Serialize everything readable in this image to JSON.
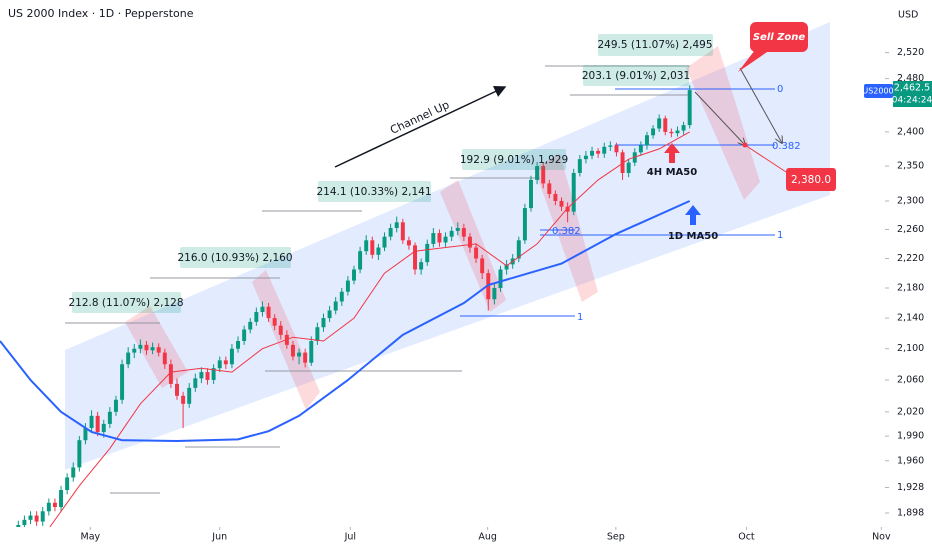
{
  "chart_data": {
    "type": "candlestick",
    "title": "US 2000 Index · 1D · Pepperstone",
    "y_axis_label": "USD",
    "log_scale": true,
    "grid": false,
    "ylim": [
      1884,
      2603
    ],
    "yticks": [
      {
        "value": 2520,
        "label": "2,520"
      },
      {
        "value": 2480,
        "label": "2,480"
      },
      {
        "value": 2400,
        "label": "2,400"
      },
      {
        "value": 2350,
        "label": "2,350"
      },
      {
        "value": 2300,
        "label": "2,300"
      },
      {
        "value": 2260,
        "label": "2,260"
      },
      {
        "value": 2220,
        "label": "2,220"
      },
      {
        "value": 2180,
        "label": "2,180"
      },
      {
        "value": 2140,
        "label": "2,140"
      },
      {
        "value": 2100,
        "label": "2,100"
      },
      {
        "value": 2060,
        "label": "2,060"
      },
      {
        "value": 2020,
        "label": "2,020"
      },
      {
        "value": 1990,
        "label": "1,990"
      },
      {
        "value": 1960,
        "label": "1,960"
      },
      {
        "value": 1928,
        "label": "1,928"
      },
      {
        "value": 1898,
        "label": "1,898"
      }
    ],
    "xlim": [
      -3,
      142
    ],
    "xticks": [
      {
        "value": 11.8,
        "label": "May"
      },
      {
        "value": 33,
        "label": "Jun"
      },
      {
        "value": 54.4,
        "label": "Jul"
      },
      {
        "value": 76.9,
        "label": "Aug"
      },
      {
        "value": 97.9,
        "label": "Sep"
      },
      {
        "value": 119.3,
        "label": "Oct"
      },
      {
        "value": 141.4,
        "label": "Nov"
      }
    ],
    "up_color": "#089981",
    "down_color": "#f23645",
    "candles": [
      [
        1878,
        1889,
        1873,
        1884
      ],
      [
        1884,
        1895,
        1879,
        1890
      ],
      [
        1890,
        1900,
        1885,
        1895
      ],
      [
        1895,
        1900,
        1883,
        1888
      ],
      [
        1888,
        1905,
        1883,
        1900
      ],
      [
        1900,
        1915,
        1895,
        1910
      ],
      [
        1910,
        1915,
        1900,
        1905
      ],
      [
        1905,
        1930,
        1900,
        1925
      ],
      [
        1925,
        1945,
        1920,
        1940
      ],
      [
        1940,
        1958,
        1935,
        1952
      ],
      [
        1952,
        1990,
        1947,
        1985
      ],
      [
        1985,
        2006,
        1980,
        2000
      ],
      [
        2000,
        2022,
        1995,
        2015
      ],
      [
        2015,
        2020,
        1990,
        1995
      ],
      [
        1995,
        2010,
        1988,
        2005
      ],
      [
        2005,
        2026,
        2000,
        2020
      ],
      [
        2020,
        2040,
        2015,
        2035
      ],
      [
        2035,
        2086,
        2030,
        2080
      ],
      [
        2080,
        2102,
        2075,
        2095
      ],
      [
        2095,
        2106,
        2088,
        2100
      ],
      [
        2100,
        2112,
        2094,
        2105
      ],
      [
        2105,
        2110,
        2092,
        2098
      ],
      [
        2098,
        2108,
        2093,
        2102
      ],
      [
        2102,
        2107,
        2090,
        2095
      ],
      [
        2095,
        2100,
        2074,
        2080
      ],
      [
        2080,
        2086,
        2050,
        2055
      ],
      [
        2055,
        2062,
        2035,
        2040
      ],
      [
        2040,
        2045,
        2000,
        2030
      ],
      [
        2030,
        2056,
        2025,
        2050
      ],
      [
        2050,
        2068,
        2045,
        2062
      ],
      [
        2062,
        2076,
        2056,
        2070
      ],
      [
        2070,
        2075,
        2054,
        2060
      ],
      [
        2060,
        2080,
        2055,
        2075
      ],
      [
        2075,
        2090,
        2070,
        2085
      ],
      [
        2085,
        2090,
        2074,
        2080
      ],
      [
        2080,
        2106,
        2075,
        2100
      ],
      [
        2100,
        2116,
        2095,
        2110
      ],
      [
        2110,
        2130,
        2105,
        2125
      ],
      [
        2125,
        2140,
        2120,
        2135
      ],
      [
        2135,
        2154,
        2130,
        2148
      ],
      [
        2148,
        2162,
        2142,
        2155
      ],
      [
        2155,
        2160,
        2135,
        2140
      ],
      [
        2140,
        2145,
        2124,
        2130
      ],
      [
        2130,
        2136,
        2112,
        2118
      ],
      [
        2118,
        2124,
        2100,
        2105
      ],
      [
        2105,
        2110,
        2085,
        2090
      ],
      [
        2090,
        2100,
        2080,
        2095
      ],
      [
        2095,
        2100,
        2076,
        2082
      ],
      [
        2082,
        2116,
        2078,
        2110
      ],
      [
        2110,
        2134,
        2105,
        2128
      ],
      [
        2128,
        2146,
        2122,
        2140
      ],
      [
        2140,
        2156,
        2135,
        2150
      ],
      [
        2150,
        2168,
        2145,
        2162
      ],
      [
        2162,
        2180,
        2156,
        2175
      ],
      [
        2175,
        2196,
        2170,
        2190
      ],
      [
        2190,
        2210,
        2185,
        2205
      ],
      [
        2205,
        2236,
        2200,
        2230
      ],
      [
        2230,
        2252,
        2225,
        2245
      ],
      [
        2245,
        2250,
        2220,
        2225
      ],
      [
        2225,
        2240,
        2218,
        2235
      ],
      [
        2235,
        2256,
        2230,
        2250
      ],
      [
        2250,
        2268,
        2245,
        2262
      ],
      [
        2262,
        2278,
        2256,
        2270
      ],
      [
        2270,
        2275,
        2240,
        2245
      ],
      [
        2245,
        2250,
        2232,
        2238
      ],
      [
        2238,
        2242,
        2198,
        2205
      ],
      [
        2205,
        2220,
        2198,
        2215
      ],
      [
        2215,
        2246,
        2210,
        2240
      ],
      [
        2240,
        2262,
        2235,
        2255
      ],
      [
        2255,
        2260,
        2236,
        2242
      ],
      [
        2242,
        2256,
        2236,
        2250
      ],
      [
        2250,
        2264,
        2244,
        2258
      ],
      [
        2258,
        2270,
        2252,
        2262
      ],
      [
        2262,
        2268,
        2244,
        2250
      ],
      [
        2250,
        2255,
        2228,
        2235
      ],
      [
        2235,
        2240,
        2214,
        2220
      ],
      [
        2220,
        2225,
        2192,
        2200
      ],
      [
        2200,
        2205,
        2150,
        2165
      ],
      [
        2165,
        2186,
        2158,
        2180
      ],
      [
        2180,
        2210,
        2175,
        2205
      ],
      [
        2205,
        2218,
        2198,
        2212
      ],
      [
        2212,
        2226,
        2206,
        2220
      ],
      [
        2220,
        2250,
        2215,
        2245
      ],
      [
        2245,
        2296,
        2240,
        2290
      ],
      [
        2290,
        2336,
        2285,
        2330
      ],
      [
        2330,
        2356,
        2324,
        2350
      ],
      [
        2350,
        2355,
        2318,
        2325
      ],
      [
        2325,
        2330,
        2304,
        2310
      ],
      [
        2310,
        2315,
        2294,
        2300
      ],
      [
        2300,
        2305,
        2286,
        2292
      ],
      [
        2292,
        2298,
        2270,
        2285
      ],
      [
        2285,
        2346,
        2280,
        2340
      ],
      [
        2340,
        2366,
        2335,
        2360
      ],
      [
        2360,
        2372,
        2354,
        2365
      ],
      [
        2365,
        2378,
        2360,
        2372
      ],
      [
        2372,
        2376,
        2362,
        2368
      ],
      [
        2368,
        2384,
        2362,
        2378
      ],
      [
        2378,
        2386,
        2372,
        2380
      ],
      [
        2380,
        2384,
        2364,
        2370
      ],
      [
        2370,
        2374,
        2330,
        2340
      ],
      [
        2340,
        2360,
        2334,
        2355
      ],
      [
        2355,
        2376,
        2350,
        2370
      ],
      [
        2370,
        2386,
        2365,
        2380
      ],
      [
        2380,
        2400,
        2374,
        2395
      ],
      [
        2395,
        2410,
        2390,
        2405
      ],
      [
        2405,
        2426,
        2400,
        2420
      ],
      [
        2420,
        2424,
        2395,
        2400
      ],
      [
        2400,
        2405,
        2392,
        2398
      ],
      [
        2398,
        2408,
        2393,
        2402
      ],
      [
        2402,
        2415,
        2396,
        2410
      ],
      [
        2410,
        2470,
        2405,
        2462.5
      ]
    ],
    "series": [
      {
        "name": "4H MA50",
        "color": "#f23645",
        "x": [
          5,
          10,
          15,
          20,
          25,
          30,
          35,
          40,
          45,
          50,
          55,
          60,
          65,
          70,
          75,
          80,
          85,
          90,
          95,
          100,
          105,
          110
        ],
        "values": [
          1880,
          1930,
          1975,
          2030,
          2070,
          2075,
          2070,
          2100,
          2115,
          2110,
          2140,
          2200,
          2230,
          2235,
          2240,
          2210,
          2240,
          2290,
          2330,
          2360,
          2375,
          2400
        ]
      },
      {
        "name": "1D MA50",
        "color": "#2962ff",
        "x": [
          -3,
          2,
          7,
          12,
          17,
          26,
          36,
          41,
          46,
          54,
          63,
          73,
          77,
          89,
          98,
          110
        ],
        "values": [
          2110,
          2060,
          2020,
          1995,
          1985,
          1984,
          1986,
          1996,
          2015,
          2060,
          2118,
          2160,
          2184,
          2213,
          2254,
          2300
        ]
      }
    ],
    "symbol": "US2000",
    "last_price": "2,462.5",
    "countdown": "04:24:24",
    "target_label": "2,380.0",
    "channel_label": "Channel Up",
    "sell_zone_label": "Sell Zone",
    "measures": [
      "249.5 (11.07%) 2,495",
      "203.1 (9.01%) 2,031",
      "192.9 (9.01%) 1,929",
      "214.1 (10.33%) 2,141",
      "216.0 (10.93%) 2,160",
      "212.8 (11.07%) 2,128"
    ],
    "fib_labels": [
      "0",
      "0.382",
      "1",
      "0.382",
      "1"
    ]
  }
}
